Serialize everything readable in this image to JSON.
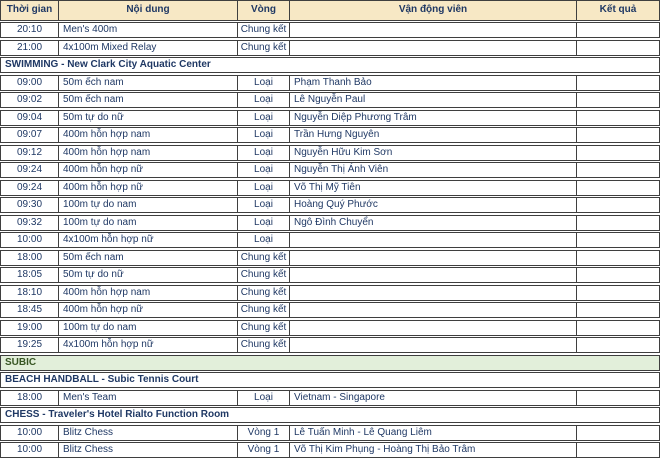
{
  "colors": {
    "header_bg": "#F7E8C5",
    "border": "#3F3F3F",
    "text": "#1F3864",
    "section_green_bg": "#E2EFDA",
    "section_green_text": "#375623"
  },
  "table": {
    "columns": [
      {
        "label": "Thời gian"
      },
      {
        "label": "Nội dung"
      },
      {
        "label": "Vòng"
      },
      {
        "label": "Vận động viên"
      },
      {
        "label": "Kết quả"
      }
    ],
    "rows": [
      {
        "type": "data",
        "time": "20:10",
        "event": "Men's 400m",
        "round": "Chung kết",
        "athlete": "",
        "result": ""
      },
      {
        "type": "data",
        "time": "21:00",
        "event": "4x100m Mixed Relay",
        "round": "Chung kết",
        "athlete": "",
        "result": ""
      },
      {
        "type": "section",
        "label": "SWIMMING - New Clark City Aquatic Center"
      },
      {
        "type": "data",
        "time": "09:00",
        "event": "50m ếch nam",
        "round": "Loại",
        "athlete": "Phạm Thanh Bảo",
        "result": ""
      },
      {
        "type": "data",
        "time": "09:02",
        "event": "50m ếch nam",
        "round": "Loại",
        "athlete": "Lê Nguyễn Paul",
        "result": ""
      },
      {
        "type": "data",
        "time": "09:04",
        "event": "50m tự do nữ",
        "round": "Loại",
        "athlete": "Nguyễn Diệp Phương Trâm",
        "result": ""
      },
      {
        "type": "data",
        "time": "09:07",
        "event": "400m hỗn hợp nam",
        "round": "Loại",
        "athlete": "Trần Hưng Nguyên",
        "result": ""
      },
      {
        "type": "data",
        "time": "09:12",
        "event": "400m hỗn hợp nam",
        "round": "Loại",
        "athlete": "Nguyễn Hữu Kim Sơn",
        "result": ""
      },
      {
        "type": "data",
        "time": "09:24",
        "event": "400m hỗn hợp nữ",
        "round": "Loại",
        "athlete": "Nguyễn Thị Ánh Viên",
        "result": ""
      },
      {
        "type": "data",
        "time": "09:24",
        "event": "400m hỗn hợp nữ",
        "round": "Loại",
        "athlete": "Võ Thị Mỹ Tiên",
        "result": ""
      },
      {
        "type": "data",
        "time": "09:30",
        "event": "100m tự do nam",
        "round": "Loại",
        "athlete": "Hoàng Quý Phước",
        "result": ""
      },
      {
        "type": "data",
        "time": "09:32",
        "event": "100m tự do nam",
        "round": "Loại",
        "athlete": "Ngô Đình Chuyển",
        "result": ""
      },
      {
        "type": "data",
        "time": "10:00",
        "event": "4x100m hỗn hợp nữ",
        "round": "Loại",
        "athlete": "",
        "result": ""
      },
      {
        "type": "data",
        "time": "18:00",
        "event": "50m ếch nam",
        "round": "Chung kết",
        "athlete": "",
        "result": ""
      },
      {
        "type": "data",
        "time": "18:05",
        "event": "50m tự do nữ",
        "round": "Chung kết",
        "athlete": "",
        "result": ""
      },
      {
        "type": "data",
        "time": "18:10",
        "event": "400m hỗn hợp nam",
        "round": "Chung kết",
        "athlete": "",
        "result": ""
      },
      {
        "type": "data",
        "time": "18:45",
        "event": "400m hỗn hợp nữ",
        "round": "Chung kết",
        "athlete": "",
        "result": ""
      },
      {
        "type": "data",
        "time": "19:00",
        "event": "100m tự do nam",
        "round": "Chung kết",
        "athlete": "",
        "result": ""
      },
      {
        "type": "data",
        "time": "19:25",
        "event": "4x100m hỗn hợp nữ",
        "round": "Chung kết",
        "athlete": "",
        "result": ""
      },
      {
        "type": "section-green",
        "label": "SUBIC"
      },
      {
        "type": "section",
        "label": "BEACH HANDBALL - Subic Tennis Court"
      },
      {
        "type": "data",
        "time": "18:00",
        "event": "Men's Team",
        "round": "Loại",
        "athlete": "Vietnam - Singapore",
        "result": ""
      },
      {
        "type": "section",
        "label": "CHESS - Traveler's Hotel Rialto Function Room"
      },
      {
        "type": "data",
        "time": "10:00",
        "event": "Blitz Chess",
        "round": "Vòng 1",
        "athlete": "Lê Tuấn Minh - Lê Quang Liêm",
        "result": ""
      },
      {
        "type": "data",
        "time": "10:00",
        "event": "Blitz Chess",
        "round": "Vòng 1",
        "athlete": "Võ Thị Kim Phụng - Hoàng Thị Bảo Trâm",
        "result": ""
      }
    ]
  }
}
